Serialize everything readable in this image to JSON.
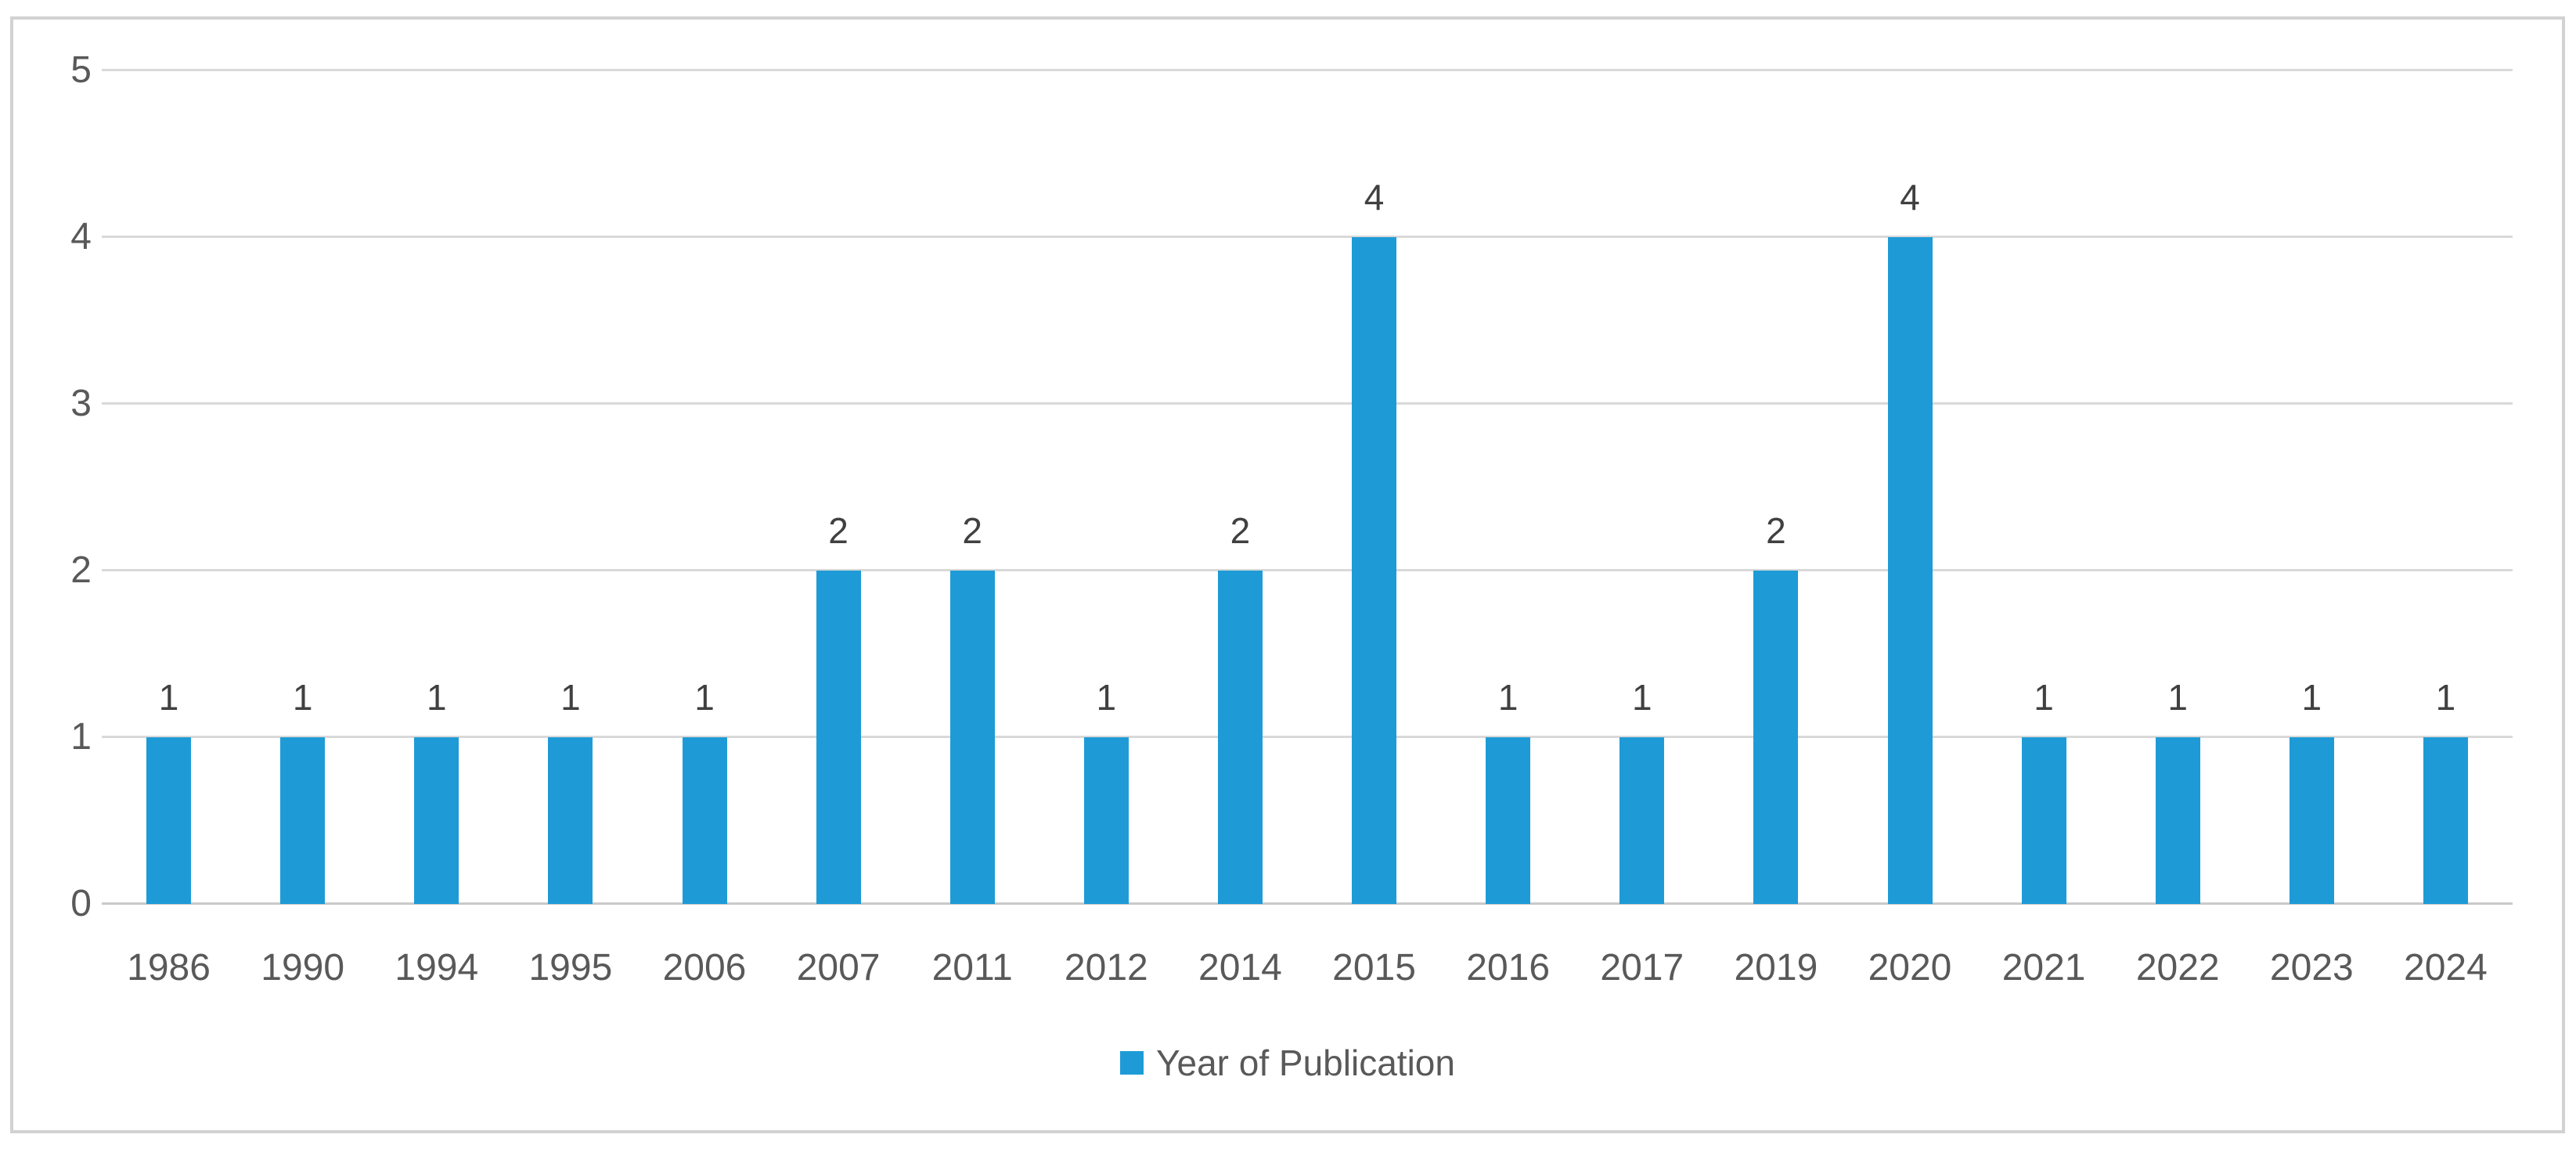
{
  "chart_data": {
    "type": "bar",
    "title": "",
    "categories": [
      "1986",
      "1990",
      "1994",
      "1995",
      "2006",
      "2007",
      "2011",
      "2012",
      "2014",
      "2015",
      "2016",
      "2017",
      "2019",
      "2020",
      "2021",
      "2022",
      "2023",
      "2024"
    ],
    "values": [
      1,
      1,
      1,
      1,
      1,
      2,
      2,
      1,
      2,
      4,
      1,
      1,
      2,
      4,
      1,
      1,
      1,
      1
    ],
    "xlabel": "",
    "ylabel": "",
    "ylim": [
      0,
      5
    ],
    "yticks": [
      0,
      1,
      2,
      3,
      4,
      5
    ],
    "grid": "horizontal gridlines on",
    "data_labels": true,
    "legend": {
      "label": "Year of Publication",
      "position": "bottom-center"
    },
    "colors": {
      "bar": "#1E9BD7",
      "gridline": "#D9D9D9",
      "axis_line": "#C9C9C9",
      "tick_text": "#595959",
      "data_label_text": "#404040",
      "legend_text": "#595959",
      "frame_border": "#D2D2D2",
      "background": "#FFFFFF"
    }
  }
}
